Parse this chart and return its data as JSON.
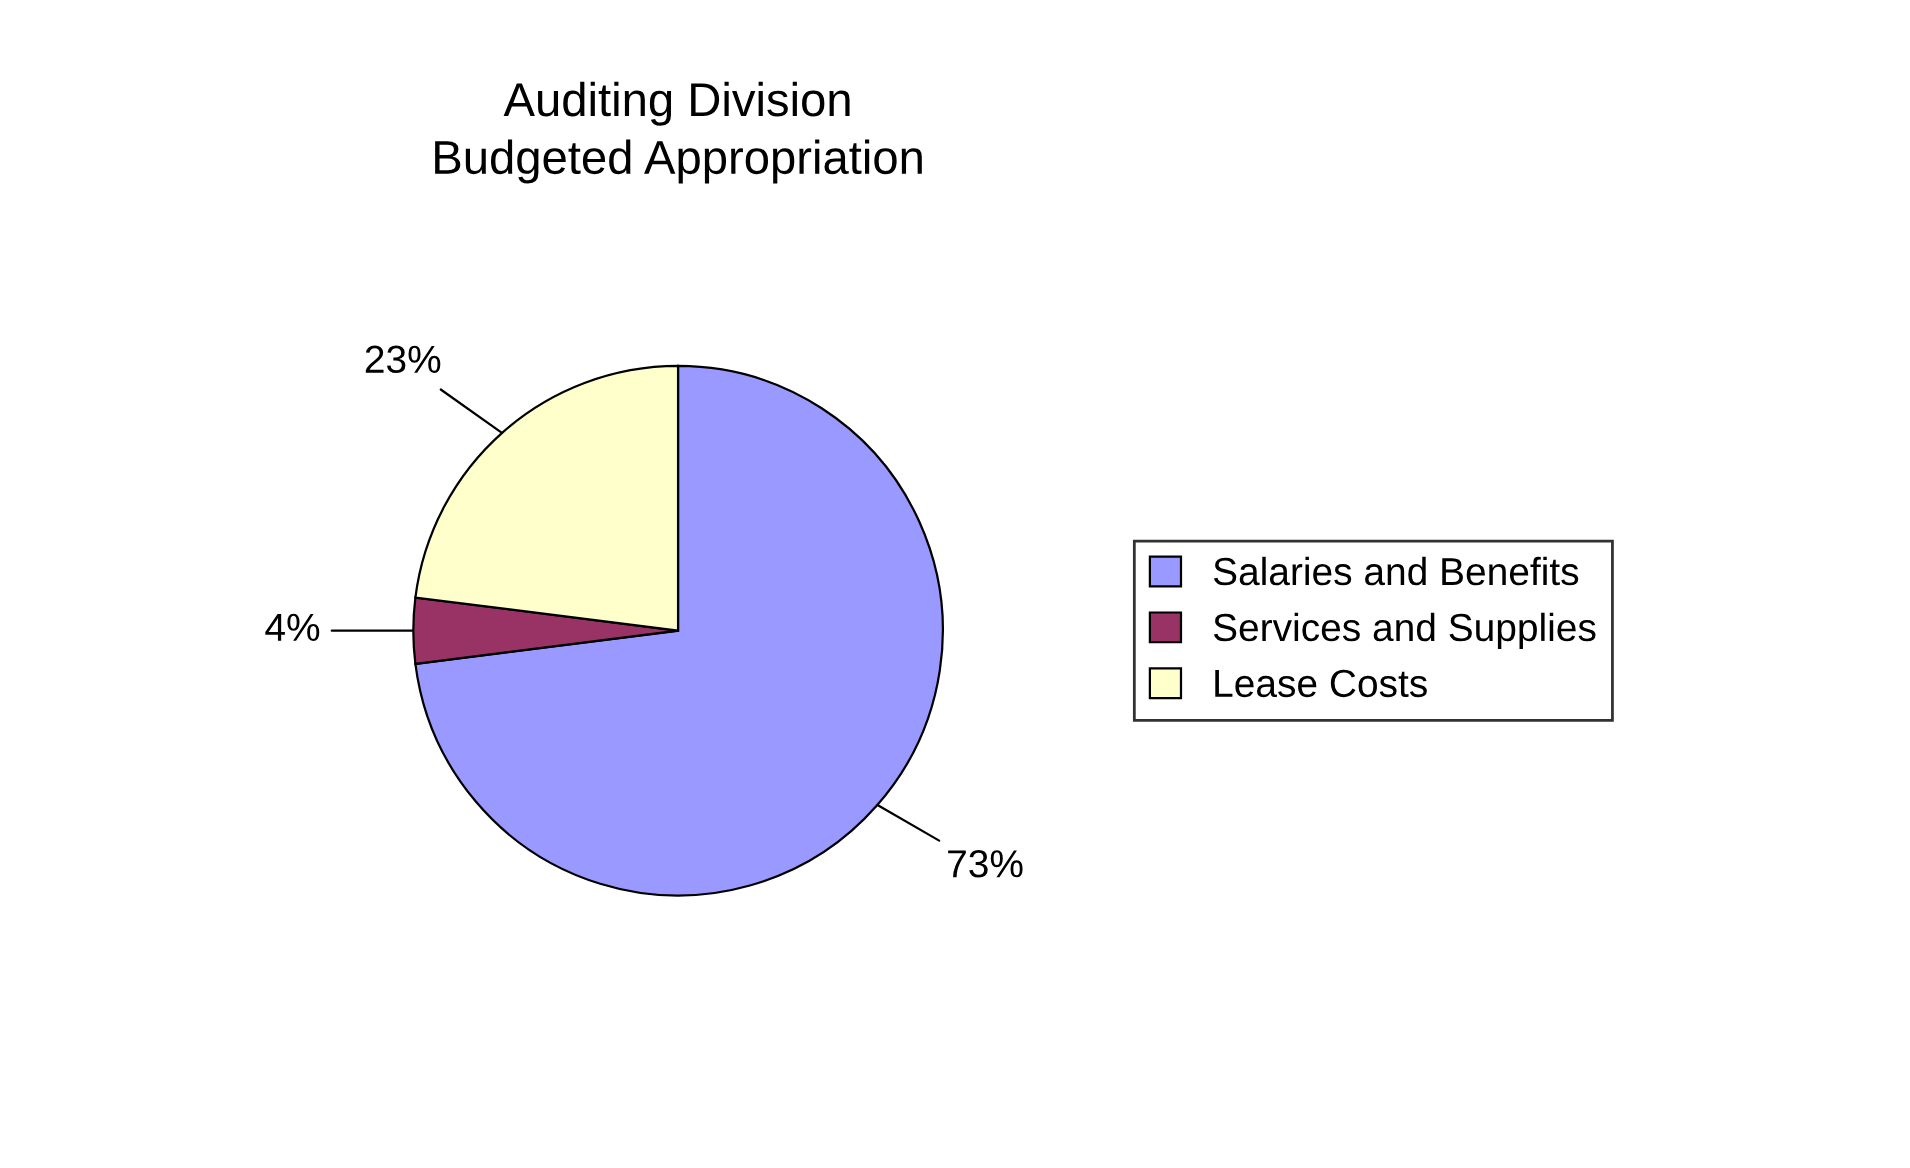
{
  "chart_data": {
    "type": "pie",
    "title": "Auditing Division\nBudgeted Appropriation",
    "categories": [
      "Salaries and Benefits",
      "Services and Supplies",
      "Lease Costs"
    ],
    "values": [
      73,
      4,
      23
    ],
    "colors": [
      "#9999ff",
      "#993366",
      "#ffffcc"
    ],
    "value_labels": [
      "73%",
      "4%",
      "23%"
    ],
    "legend": "right"
  }
}
